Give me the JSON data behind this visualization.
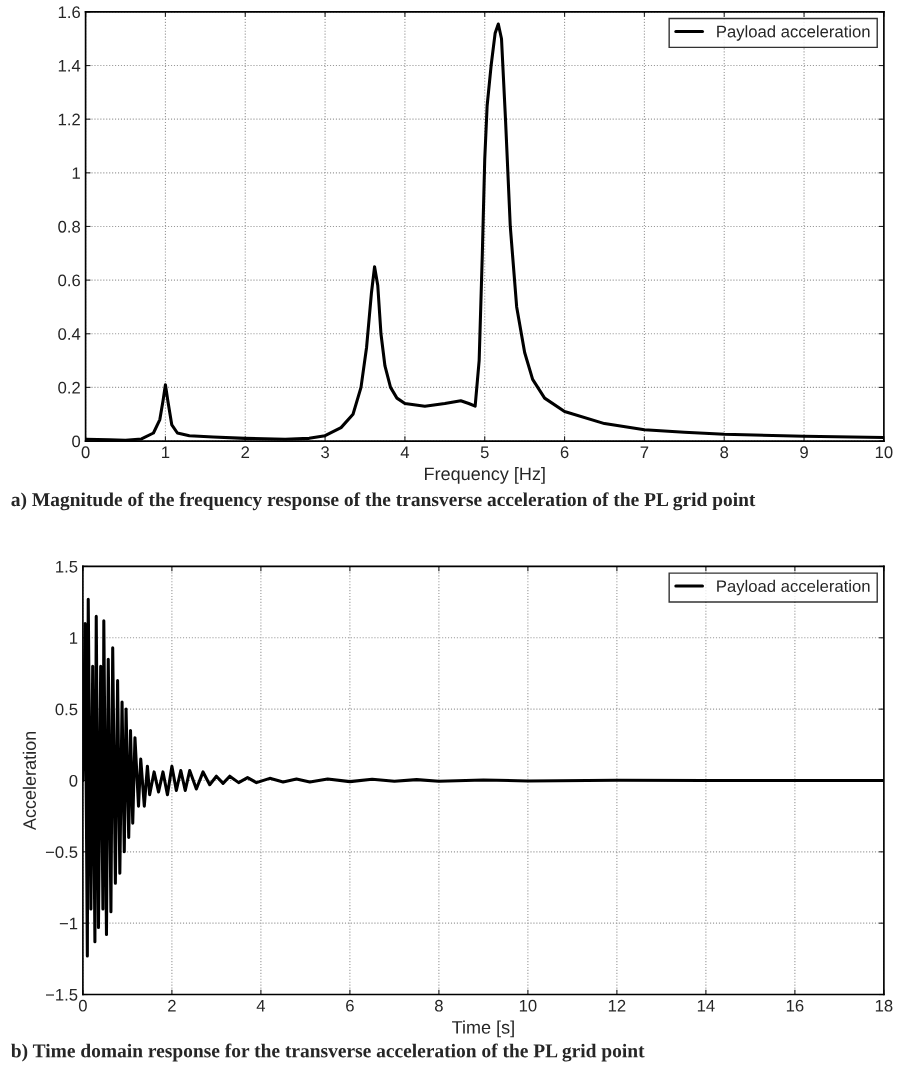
{
  "chart_data": [
    {
      "type": "line",
      "xlabel": "Frequency [Hz]",
      "xlim": [
        0,
        10
      ],
      "xticks": [
        0,
        1,
        2,
        3,
        4,
        5,
        6,
        7,
        8,
        9,
        10
      ],
      "ylim": [
        0,
        1.6
      ],
      "yticks": [
        0,
        0.2,
        0.4,
        0.6,
        0.8,
        1,
        1.2,
        1.4,
        1.6
      ],
      "grid": true,
      "legend": "top right",
      "marker": "none",
      "line_style": "solid",
      "annotations": [
        "a) Magnitude of the frequency response of the transverse acceleration of the PL grid point"
      ],
      "series": [
        {
          "name": "Payload acceleration",
          "color": "#000000",
          "x": [
            0,
            0.3,
            0.5,
            0.7,
            0.85,
            0.93,
            0.97,
            1.0,
            1.03,
            1.08,
            1.15,
            1.3,
            1.6,
            2.0,
            2.5,
            2.8,
            3.0,
            3.2,
            3.35,
            3.45,
            3.52,
            3.58,
            3.62,
            3.66,
            3.7,
            3.75,
            3.82,
            3.9,
            4.0,
            4.25,
            4.5,
            4.7,
            4.8,
            4.88,
            4.93,
            4.97,
            5.0,
            5.03,
            5.08,
            5.13,
            5.17,
            5.21,
            5.26,
            5.32,
            5.4,
            5.5,
            5.6,
            5.75,
            6.0,
            6.5,
            7.0,
            7.5,
            8.0,
            9.0,
            10.0
          ],
          "values": [
            0.007,
            0.005,
            0.003,
            0.008,
            0.03,
            0.08,
            0.15,
            0.21,
            0.15,
            0.06,
            0.03,
            0.02,
            0.015,
            0.01,
            0.007,
            0.01,
            0.02,
            0.05,
            0.1,
            0.2,
            0.35,
            0.55,
            0.65,
            0.58,
            0.4,
            0.28,
            0.2,
            0.16,
            0.14,
            0.13,
            0.14,
            0.15,
            0.14,
            0.13,
            0.3,
            0.7,
            1.05,
            1.25,
            1.4,
            1.52,
            1.555,
            1.5,
            1.2,
            0.8,
            0.5,
            0.33,
            0.23,
            0.16,
            0.11,
            0.065,
            0.042,
            0.033,
            0.025,
            0.018,
            0.013
          ]
        }
      ]
    },
    {
      "type": "line",
      "xlabel": "Time [s]",
      "ylabel": "Acceleration",
      "xlim": [
        0,
        18
      ],
      "xticks": [
        0,
        2,
        4,
        6,
        8,
        10,
        12,
        14,
        16,
        18
      ],
      "ylim": [
        -1.5,
        1.5
      ],
      "yticks": [
        {
          "value": -1.5,
          "label": "−1.5"
        },
        {
          "value": -1,
          "label": "−1"
        },
        {
          "value": -0.5,
          "label": "−0.5"
        },
        0,
        0.5,
        1,
        1.5
      ],
      "grid": true,
      "legend": "top right",
      "marker": "none",
      "line_style": "solid",
      "annotations": [
        "b) Time domain response for the transverse acceleration of the PL grid point"
      ],
      "series": [
        {
          "name": "Payload acceleration",
          "color": "#000000",
          "x": [
            0,
            0.05,
            0.1,
            0.12,
            0.18,
            0.22,
            0.27,
            0.3,
            0.35,
            0.4,
            0.45,
            0.47,
            0.53,
            0.57,
            0.63,
            0.67,
            0.73,
            0.78,
            0.83,
            0.88,
            0.93,
            0.97,
            1.03,
            1.07,
            1.12,
            1.17,
            1.25,
            1.3,
            1.38,
            1.45,
            1.5,
            1.6,
            1.7,
            1.8,
            1.9,
            2.0,
            2.1,
            2.2,
            2.3,
            2.4,
            2.55,
            2.7,
            2.85,
            3.0,
            3.15,
            3.3,
            3.5,
            3.7,
            3.9,
            4.2,
            4.5,
            4.8,
            5.1,
            5.5,
            6.0,
            6.5,
            7.0,
            7.5,
            8.0,
            9.0,
            10.0,
            12.0,
            14.0,
            18.0
          ],
          "values": [
            0,
            1.1,
            -1.23,
            1.27,
            -0.9,
            0.8,
            -1.13,
            1.15,
            -1.03,
            0.8,
            -0.9,
            1.12,
            -1.08,
            0.85,
            -0.92,
            0.93,
            -0.72,
            0.7,
            -0.65,
            0.55,
            -0.5,
            0.5,
            -0.4,
            0.35,
            -0.3,
            0.3,
            -0.18,
            0.15,
            -0.18,
            0.1,
            -0.1,
            0.06,
            -0.08,
            0.06,
            -0.1,
            0.1,
            -0.07,
            0.07,
            -0.07,
            0.07,
            -0.06,
            0.06,
            -0.03,
            0.03,
            -0.02,
            0.03,
            -0.015,
            0.02,
            -0.015,
            0.015,
            -0.01,
            0.01,
            -0.01,
            0.01,
            -0.008,
            0.008,
            -0.006,
            0.006,
            -0.005,
            0.004,
            -0.003,
            0.002,
            0,
            0
          ]
        }
      ]
    }
  ]
}
